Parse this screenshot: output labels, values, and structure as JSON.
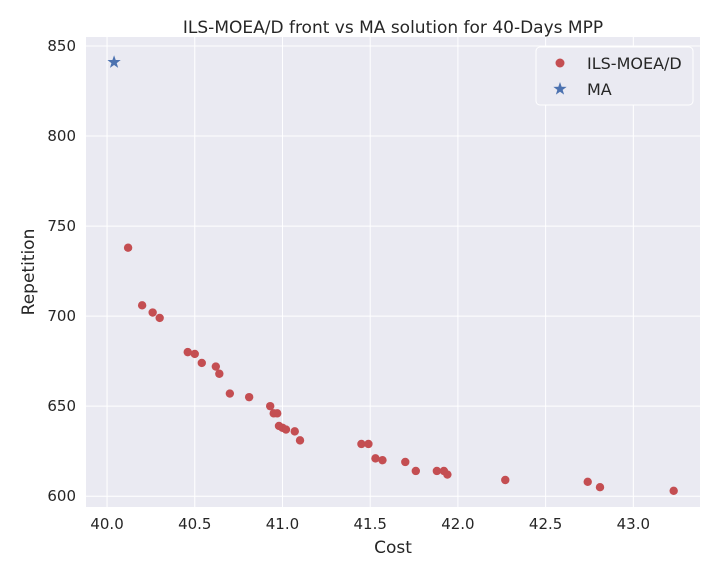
{
  "chart_data": {
    "type": "scatter",
    "title": "ILS-MOEA/D front vs MA solution for 40-Days MPP",
    "xlabel": "Cost",
    "ylabel": "Repetition",
    "xlim": [
      39.88,
      43.38
    ],
    "ylim": [
      594,
      855
    ],
    "xticks": [
      40.0,
      40.5,
      41.0,
      41.5,
      42.0,
      42.5,
      43.0
    ],
    "xtick_labels": [
      "40.0",
      "40.5",
      "41.0",
      "41.5",
      "42.0",
      "42.5",
      "43.0"
    ],
    "yticks": [
      600,
      650,
      700,
      750,
      800,
      850
    ],
    "ytick_labels": [
      "600",
      "650",
      "700",
      "750",
      "800",
      "850"
    ],
    "grid": true,
    "legend_position": "top-right",
    "colors": {
      "background": "#eaeaf2",
      "grid": "#ffffff",
      "ils": "#c44e52",
      "ma": "#4c72b0"
    },
    "series": [
      {
        "name": "ILS-MOEA/D",
        "marker": "circle",
        "color": "#c44e52",
        "points": [
          [
            40.12,
            738
          ],
          [
            40.2,
            706
          ],
          [
            40.26,
            702
          ],
          [
            40.3,
            699
          ],
          [
            40.46,
            680
          ],
          [
            40.5,
            679
          ],
          [
            40.54,
            674
          ],
          [
            40.62,
            672
          ],
          [
            40.64,
            668
          ],
          [
            40.7,
            657
          ],
          [
            40.81,
            655
          ],
          [
            40.93,
            650
          ],
          [
            40.95,
            646
          ],
          [
            40.97,
            646
          ],
          [
            40.98,
            639
          ],
          [
            41.0,
            638
          ],
          [
            41.02,
            637
          ],
          [
            41.07,
            636
          ],
          [
            41.1,
            631
          ],
          [
            41.45,
            629
          ],
          [
            41.49,
            629
          ],
          [
            41.53,
            621
          ],
          [
            41.57,
            620
          ],
          [
            41.7,
            619
          ],
          [
            41.76,
            614
          ],
          [
            41.88,
            614
          ],
          [
            41.92,
            614
          ],
          [
            41.94,
            612
          ],
          [
            42.27,
            609
          ],
          [
            42.74,
            608
          ],
          [
            42.81,
            605
          ],
          [
            43.23,
            603
          ]
        ]
      },
      {
        "name": "MA",
        "marker": "star",
        "color": "#4c72b0",
        "points": [
          [
            40.04,
            841
          ]
        ]
      }
    ]
  }
}
